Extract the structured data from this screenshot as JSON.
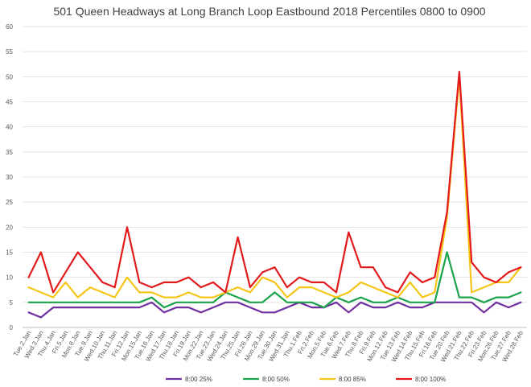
{
  "chart_data": {
    "type": "line",
    "title": "501 Queen Headways at Long Branch Loop Eastbound 2018 Percentiles 0800 to 0900",
    "xlabel": "",
    "ylabel": "",
    "ylim": [
      0,
      60
    ],
    "yticks": [
      0,
      5,
      10,
      15,
      20,
      25,
      30,
      35,
      40,
      45,
      50,
      55,
      60
    ],
    "grid": true,
    "legend_position": "bottom",
    "categories": [
      "Tue.2.Jan",
      "Wed.3.Jan",
      "Thu.4.Jan",
      "Fri.5.Jan",
      "Mon.8.Jan",
      "Tue.9.Jan",
      "Wed.10.Jan",
      "Thu.11.Jan",
      "Fri.12.Jan",
      "Mon.15.Jan",
      "Tue.16.Jan",
      "Wed.17.Jan",
      "Thu.18.Jan",
      "Fri.19.Jan",
      "Mon.22.Jan",
      "Tue.23.Jan",
      "Wed.24.Jan",
      "Thu.25.Jan",
      "Fri.26.Jan",
      "Mon.29.Jan",
      "Tue.30.Jan",
      "Wed.31.Jan",
      "Thu.1.Feb",
      "Fri.2.Feb",
      "Mon.5.Feb",
      "Tue.6.Feb",
      "Wed.7.Feb",
      "Thu.8.Feb",
      "Fri.9.Feb",
      "Mon.12.Feb",
      "Tue.13.Feb",
      "Wed.14.Feb",
      "Thu.15.Feb",
      "Fri.16.Feb",
      "Tue.20.Feb",
      "Wed.21.Feb",
      "Thu.22.Feb",
      "Fri.23.Feb",
      "Mon.26.Feb",
      "Tue.27.Feb",
      "Wed.28.Feb"
    ],
    "series": [
      {
        "name": "8:00 25%",
        "color": "#7030a0",
        "values": [
          3,
          2,
          4,
          4,
          4,
          4,
          4,
          4,
          4,
          4,
          5,
          3,
          4,
          4,
          3,
          4,
          5,
          5,
          4,
          3,
          3,
          4,
          5,
          4,
          4,
          5,
          3,
          5,
          4,
          4,
          5,
          4,
          4,
          5,
          5,
          5,
          5,
          3,
          5,
          4,
          5
        ]
      },
      {
        "name": "8:00 50%",
        "color": "#1aa34a",
        "values": [
          5,
          5,
          5,
          5,
          5,
          5,
          5,
          5,
          5,
          5,
          6,
          4,
          5,
          5,
          5,
          5,
          7,
          6,
          5,
          5,
          7,
          5,
          5,
          5,
          4,
          6,
          5,
          6,
          5,
          5,
          6,
          5,
          5,
          5,
          15,
          6,
          6,
          5,
          6,
          6,
          7
        ]
      },
      {
        "name": "8:00 85%",
        "color": "#f5c518",
        "values": [
          8,
          7,
          6,
          9,
          6,
          8,
          7,
          6,
          10,
          7,
          7,
          6,
          6,
          7,
          6,
          6,
          7,
          8,
          7,
          10,
          9,
          6,
          8,
          8,
          7,
          6,
          7,
          9,
          8,
          7,
          6,
          9,
          6,
          7,
          22,
          50,
          7,
          8,
          9,
          9,
          12
        ]
      },
      {
        "name": "8:00 100%",
        "color": "#e31a1c",
        "values": [
          10,
          15,
          7,
          11,
          15,
          12,
          9,
          8,
          20,
          9,
          8,
          9,
          9,
          10,
          8,
          9,
          7,
          18,
          8,
          11,
          12,
          8,
          10,
          9,
          9,
          7,
          19,
          12,
          12,
          8,
          7,
          11,
          9,
          10,
          23,
          51,
          13,
          10,
          9,
          11,
          12
        ]
      }
    ]
  }
}
